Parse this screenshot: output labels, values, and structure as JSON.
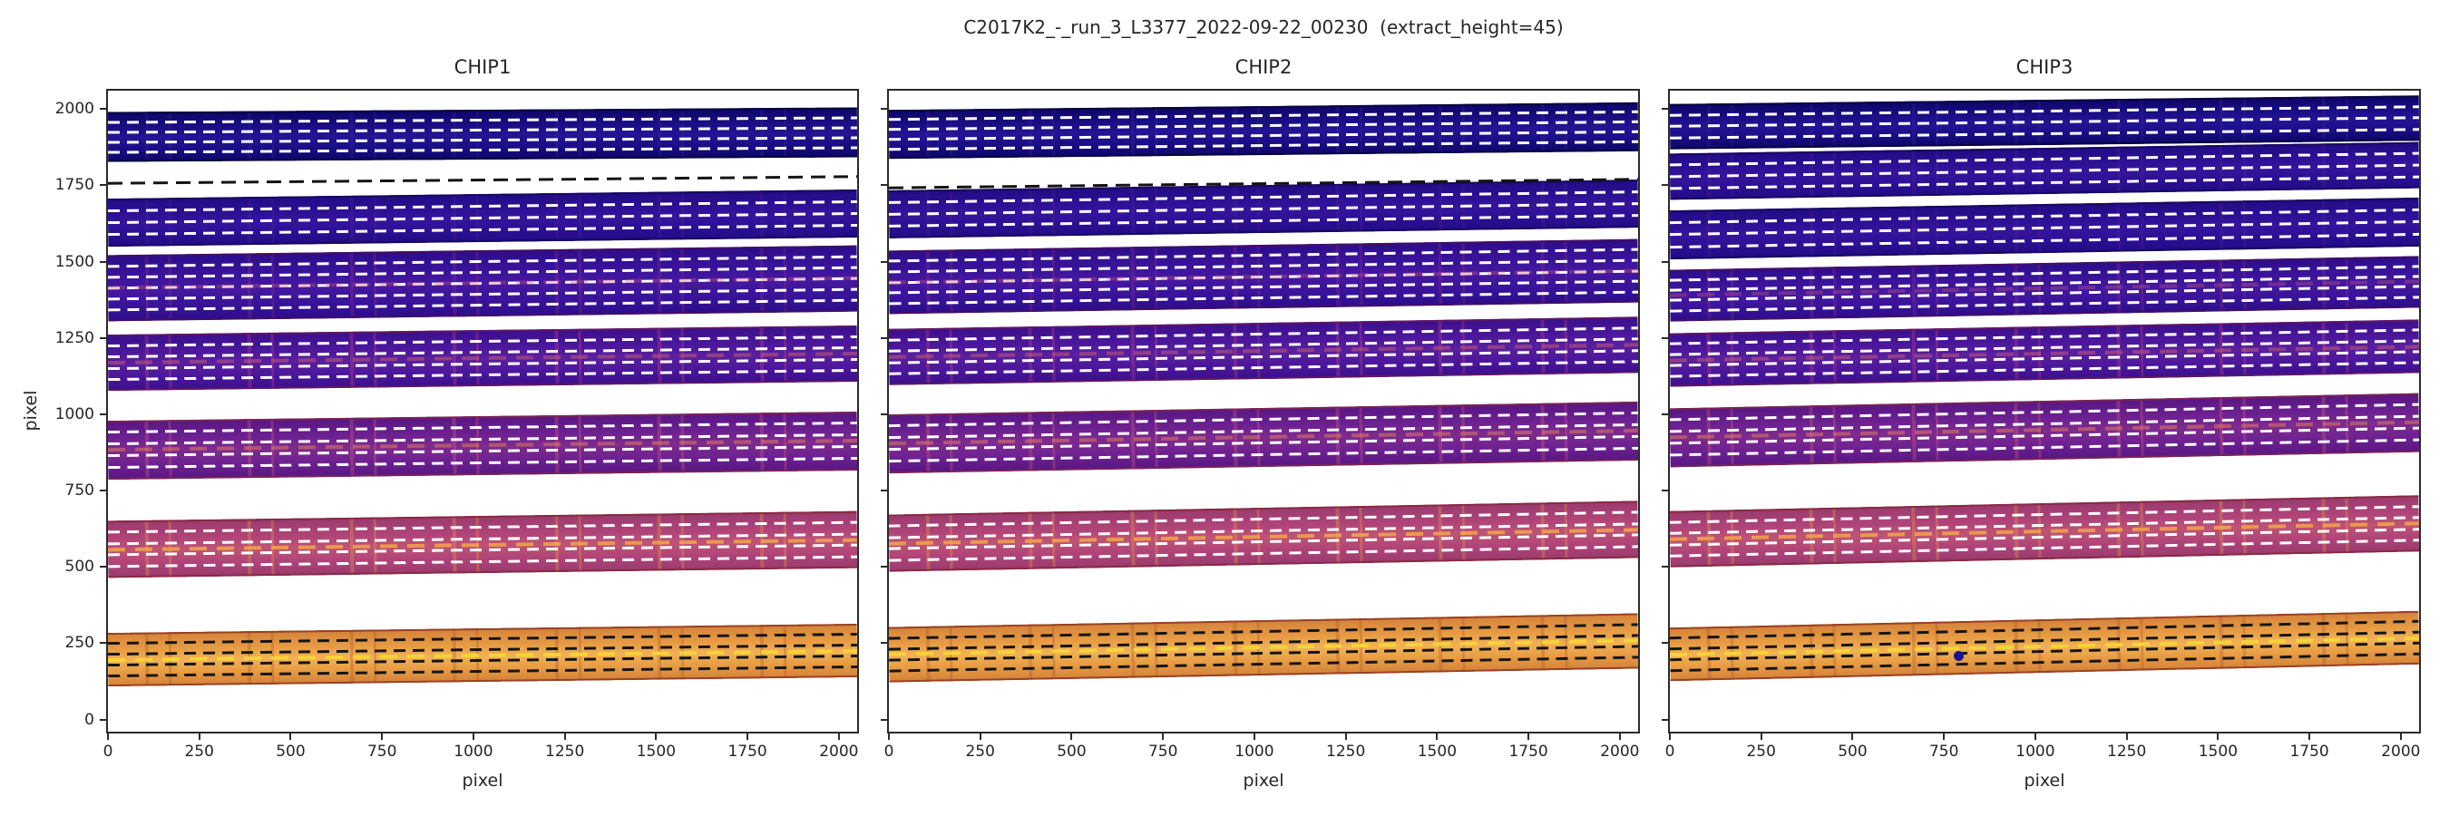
{
  "chart_data": {
    "type": "area",
    "title": "C2017K2_-_run_3_L3377_2022-09-22_00230  (extract_height=45)",
    "xlabel": "pixel",
    "ylabel": "pixel",
    "xlim": [
      0,
      2050
    ],
    "ylim": [
      -40,
      2060
    ],
    "grid": false,
    "xticks": [
      0,
      250,
      500,
      750,
      1000,
      1250,
      1500,
      1750,
      2000
    ],
    "yticks": [
      0,
      250,
      500,
      750,
      1000,
      1250,
      1500,
      1750,
      2000
    ],
    "panels": [
      {
        "title": "CHIP1",
        "show_y_labels": true,
        "orders": [
          {
            "center_left": 1908,
            "rise": 15,
            "half_height": 82,
            "style": "navy",
            "lines": 4
          },
          {
            "center_left": 1628,
            "rise": 30,
            "half_height": 78,
            "style": "bluepurple",
            "lines": 3
          },
          {
            "center_left": 1412,
            "rise": 32,
            "half_height": 108,
            "style": "darkpurple",
            "lines": 5
          },
          {
            "center_left": 1168,
            "rise": 30,
            "half_height": 92,
            "style": "purplemag",
            "lines": 4
          },
          {
            "center_left": 882,
            "rise": 30,
            "half_height": 96,
            "style": "pinkpurple",
            "lines": 4
          },
          {
            "center_left": 556,
            "rise": 32,
            "half_height": 94,
            "style": "pink",
            "lines": 4
          },
          {
            "center_left": 196,
            "rise": 30,
            "half_height": 88,
            "style": "orange",
            "lines": 4
          }
        ],
        "guide_lines": [
          {
            "y": 1757,
            "rise": 22,
            "color": "#141414"
          }
        ],
        "markers": []
      },
      {
        "title": "CHIP2",
        "show_y_labels": false,
        "orders": [
          {
            "center_left": 1918,
            "rise": 25,
            "half_height": 80,
            "style": "navy",
            "lines": 4
          },
          {
            "center_left": 1655,
            "rise": 35,
            "half_height": 78,
            "style": "bluepurple",
            "lines": 3
          },
          {
            "center_left": 1432,
            "rise": 38,
            "half_height": 104,
            "style": "darkpurple",
            "lines": 5
          },
          {
            "center_left": 1188,
            "rise": 40,
            "half_height": 92,
            "style": "purplemag",
            "lines": 4
          },
          {
            "center_left": 902,
            "rise": 42,
            "half_height": 96,
            "style": "pinkpurple",
            "lines": 4
          },
          {
            "center_left": 578,
            "rise": 45,
            "half_height": 94,
            "style": "pink",
            "lines": 4
          },
          {
            "center_left": 214,
            "rise": 45,
            "half_height": 90,
            "style": "orange",
            "lines": 4
          }
        ],
        "guide_lines": [
          {
            "y": 1742,
            "rise": 28,
            "color": "#141414"
          }
        ],
        "markers": []
      },
      {
        "title": "CHIP3",
        "show_y_labels": false,
        "orders": [
          {
            "center_left": 1942,
            "rise": 28,
            "half_height": 74,
            "style": "navy",
            "lines": 3
          },
          {
            "center_left": 1778,
            "rise": 38,
            "half_height": 76,
            "style": "bluepurple",
            "lines": 3
          },
          {
            "center_left": 1588,
            "rise": 42,
            "half_height": 80,
            "style": "bluepurple",
            "lines": 3
          },
          {
            "center_left": 1388,
            "rise": 45,
            "half_height": 84,
            "style": "darkpurple",
            "lines": 4
          },
          {
            "center_left": 1178,
            "rise": 45,
            "half_height": 88,
            "style": "purplemag",
            "lines": 4
          },
          {
            "center_left": 922,
            "rise": 50,
            "half_height": 96,
            "style": "pinkpurple",
            "lines": 4
          },
          {
            "center_left": 592,
            "rise": 52,
            "half_height": 92,
            "style": "pink",
            "lines": 4
          },
          {
            "center_left": 212,
            "rise": 55,
            "half_height": 88,
            "style": "orange",
            "lines": 4
          }
        ],
        "guide_lines": [],
        "markers": [
          {
            "x": 790,
            "y": 208,
            "color": "#1c1590",
            "radius": 5.5
          }
        ]
      }
    ],
    "styles": {
      "navy": {
        "base": "#1a0e86",
        "light": "#241495",
        "dark": "#0d0566",
        "edge": "rgba(8,4,60,0.9)",
        "dash": "#ffffff",
        "speckle": "rgba(60,40,160,0.25)",
        "trace": ""
      },
      "bluepurple": {
        "base": "#2c1095",
        "light": "#36149d",
        "dark": "#220b84",
        "edge": "rgba(20,8,90,0.85)",
        "dash": "#ffffff",
        "speckle": "rgba(90,40,150,0.22)",
        "trace": ""
      },
      "darkpurple": {
        "base": "#3a139b",
        "light": "#45189f",
        "dark": "#2c0d8a",
        "edge": "rgba(70,15,95,0.85)",
        "dash": "#ffffff",
        "speckle": "rgba(175,60,130,0.22)",
        "trace": "rgba(205,90,120,0.35)"
      },
      "purplemag": {
        "base": "#4c179c",
        "light": "#5a209d",
        "dark": "#3a0f8c",
        "edge": "rgba(100,25,95,0.85)",
        "dash": "#ffffff",
        "speckle": "rgba(205,70,130,0.30)",
        "trace": "rgba(215,100,110,0.45)"
      },
      "pinkpurple": {
        "base": "#6e2191",
        "light": "#7e2b8d",
        "dark": "#571683",
        "edge": "rgba(125,35,80,0.9)",
        "dash": "#ffffff",
        "speckle": "rgba(220,100,120,0.30)",
        "trace": "rgba(230,130,90,0.50)"
      },
      "pink": {
        "base": "#b04479",
        "light": "#be5474",
        "dark": "#993a6e",
        "edge": "rgba(135,40,60,0.9)",
        "dash": "#ffffff",
        "speckle": "rgba(235,150,70,0.35)",
        "trace": "rgba(245,170,70,0.80)"
      },
      "orange": {
        "base": "#e89c43",
        "light": "#f0b254",
        "dark": "#d3823a",
        "edge": "rgba(150,60,35,0.95)",
        "dash": "#151515",
        "speckle": "rgba(165,75,35,0.28)",
        "trace": "#f6d33a"
      }
    }
  }
}
